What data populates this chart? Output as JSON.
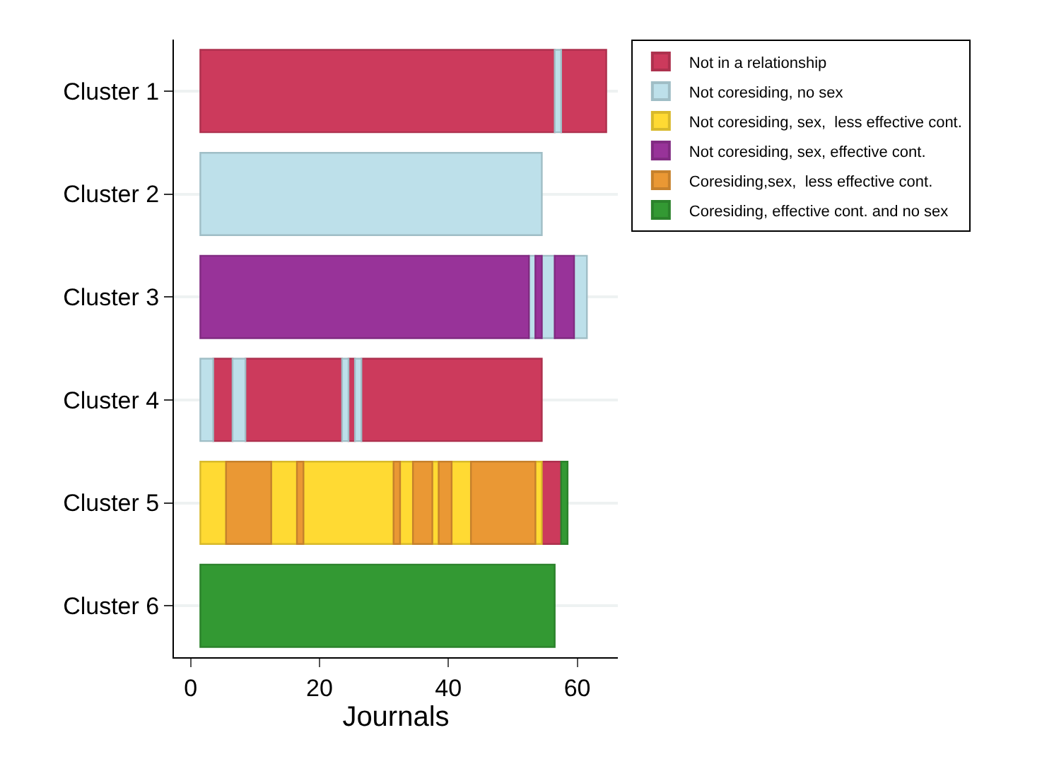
{
  "chart_data": {
    "type": "bar",
    "orientation": "horizontal",
    "xlabel": "Journals",
    "categories": [
      "Cluster 1",
      "Cluster 2",
      "Cluster 3",
      "Cluster 4",
      "Cluster 5",
      "Cluster 6"
    ],
    "xlim": [
      -2.6,
      66.3
    ],
    "xticks": [
      0,
      20,
      40,
      60
    ],
    "grid": "y",
    "legend": "top right",
    "series": [
      {
        "name": "Not in a relationship",
        "color": "#cc3a5c",
        "values": [
          55,
          null,
          null,
          3,
          3,
          null
        ],
        "base": [
          1.5,
          null,
          null,
          3.5,
          54.5,
          null
        ]
      },
      {
        "color": "#cc3a5c",
        "values": [
          7,
          null,
          null,
          15,
          null,
          null
        ],
        "base": [
          57.5,
          null,
          null,
          8.5,
          null,
          null
        ]
      },
      {
        "color": "#cc3a5c",
        "values": [
          null,
          null,
          null,
          1,
          null,
          null
        ],
        "base": [
          null,
          null,
          null,
          24.5,
          null,
          null
        ]
      },
      {
        "color": "#cc3a5c",
        "values": [
          null,
          null,
          null,
          28,
          null,
          null
        ],
        "base": [
          null,
          null,
          null,
          26.5,
          null,
          null
        ]
      },
      {
        "name": "Not coresiding, no sex",
        "color": "#bde0ea",
        "values": [
          1,
          53,
          1,
          2,
          null,
          null
        ],
        "base": [
          56.5,
          1.5,
          52.5,
          1.5,
          null,
          null
        ]
      },
      {
        "color": "#bde0ea",
        "values": [
          null,
          null,
          2,
          2,
          null,
          null
        ],
        "base": [
          null,
          null,
          54.5,
          6.5,
          null,
          null
        ]
      },
      {
        "color": "#bde0ea",
        "values": [
          null,
          null,
          2,
          1,
          null,
          null
        ],
        "base": [
          null,
          null,
          59.5,
          23.5,
          null,
          null
        ]
      },
      {
        "color": "#bde0ea",
        "values": [
          null,
          null,
          null,
          1,
          null,
          null
        ],
        "base": [
          null,
          null,
          null,
          25.5,
          null,
          null
        ]
      },
      {
        "name": "Not coresiding, sex,  less effective cont.",
        "color": "#ffda33",
        "values": [
          null,
          null,
          null,
          null,
          4,
          null
        ],
        "base": [
          null,
          null,
          null,
          null,
          1.5,
          null
        ]
      },
      {
        "color": "#ffda33",
        "values": [
          null,
          null,
          null,
          null,
          4,
          null
        ],
        "base": [
          null,
          null,
          null,
          null,
          12.5,
          null
        ]
      },
      {
        "color": "#ffda33",
        "values": [
          null,
          null,
          null,
          null,
          14,
          null
        ],
        "base": [
          null,
          null,
          null,
          null,
          17.5,
          null
        ]
      },
      {
        "color": "#ffda33",
        "values": [
          null,
          null,
          null,
          null,
          2,
          null
        ],
        "base": [
          null,
          null,
          null,
          null,
          32.5,
          null
        ]
      },
      {
        "color": "#ffda33",
        "values": [
          null,
          null,
          null,
          null,
          1,
          null
        ],
        "base": [
          null,
          null,
          null,
          null,
          37.5,
          null
        ]
      },
      {
        "color": "#ffda33",
        "values": [
          null,
          null,
          null,
          null,
          3,
          null
        ],
        "base": [
          null,
          null,
          null,
          null,
          40.5,
          null
        ]
      },
      {
        "color": "#ffda33",
        "values": [
          null,
          null,
          null,
          null,
          1,
          null
        ],
        "base": [
          null,
          null,
          null,
          null,
          53.5,
          null
        ]
      },
      {
        "name": "Not coresiding, sex, effective cont.",
        "color": "#983399",
        "values": [
          null,
          null,
          51,
          null,
          null,
          null
        ],
        "base": [
          null,
          null,
          1.5,
          null,
          null,
          null
        ]
      },
      {
        "color": "#983399",
        "values": [
          null,
          null,
          1,
          null,
          null,
          null
        ],
        "base": [
          null,
          null,
          53.5,
          null,
          null,
          null
        ]
      },
      {
        "color": "#983399",
        "values": [
          null,
          null,
          3,
          null,
          null,
          null
        ],
        "base": [
          null,
          null,
          56.5,
          null,
          null,
          null
        ]
      },
      {
        "name": "Coresiding,sex,  less effective cont.",
        "color": "#ea9834",
        "values": [
          null,
          null,
          null,
          null,
          7,
          null
        ],
        "base": [
          null,
          null,
          null,
          null,
          5.5,
          null
        ]
      },
      {
        "color": "#ea9834",
        "values": [
          null,
          null,
          null,
          null,
          1,
          null
        ],
        "base": [
          null,
          null,
          null,
          null,
          16.5,
          null
        ]
      },
      {
        "color": "#ea9834",
        "values": [
          null,
          null,
          null,
          null,
          1,
          null
        ],
        "base": [
          null,
          null,
          null,
          null,
          31.5,
          null
        ]
      },
      {
        "color": "#ea9834",
        "values": [
          null,
          null,
          null,
          null,
          3,
          null
        ],
        "base": [
          null,
          null,
          null,
          null,
          34.5,
          null
        ]
      },
      {
        "color": "#ea9834",
        "values": [
          null,
          null,
          null,
          null,
          2,
          null
        ],
        "base": [
          null,
          null,
          null,
          null,
          38.5,
          null
        ]
      },
      {
        "color": "#ea9834",
        "values": [
          null,
          null,
          null,
          null,
          10,
          null
        ],
        "base": [
          null,
          null,
          null,
          null,
          43.5,
          null
        ]
      },
      {
        "name": "Coresiding, effective cont. and no sex",
        "color": "#339933",
        "values": [
          null,
          null,
          null,
          null,
          1,
          55
        ],
        "base": [
          null,
          null,
          null,
          null,
          57.5,
          1.5
        ]
      }
    ]
  }
}
